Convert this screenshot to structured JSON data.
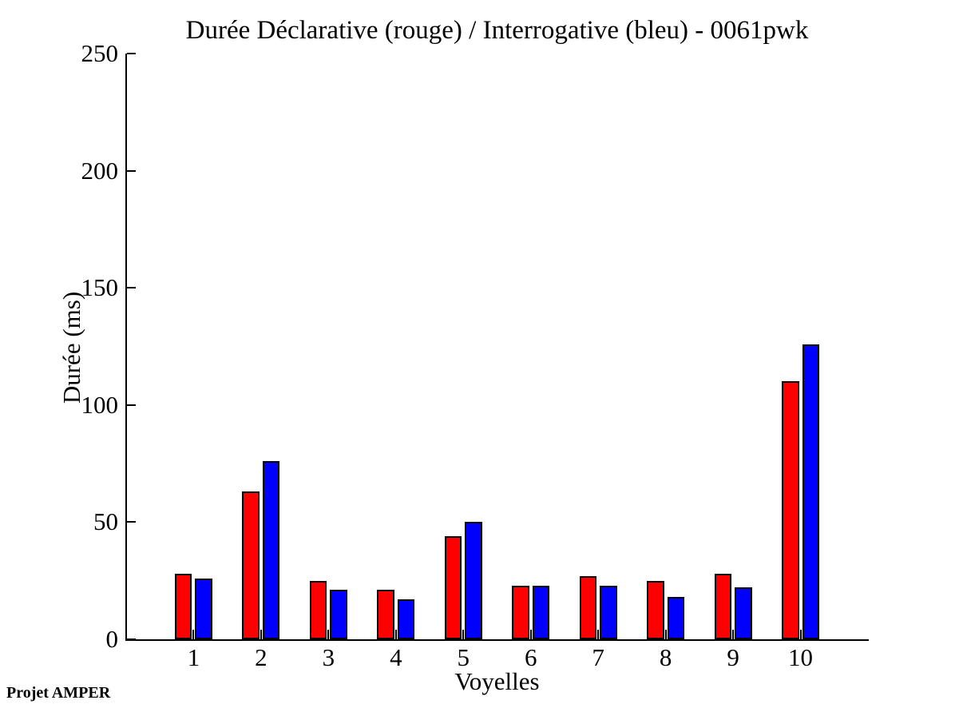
{
  "chart_data": {
    "type": "bar",
    "title": "Durée Déclarative (rouge) / Interrogative (bleu) - 0061pwk",
    "xlabel": "Voyelles",
    "ylabel": "Durée (ms)",
    "categories": [
      "1",
      "2",
      "3",
      "4",
      "5",
      "6",
      "7",
      "8",
      "9",
      "10"
    ],
    "series": [
      {
        "name": "Déclarative",
        "color_word_in_title": "rouge",
        "color": "#ff0000",
        "values": [
          28,
          63,
          25,
          21,
          44,
          23,
          27,
          25,
          28,
          110
        ]
      },
      {
        "name": "Interrogative",
        "color_word_in_title": "bleu",
        "color": "#0000ff",
        "values": [
          26,
          76,
          21,
          17,
          50,
          23,
          23,
          18,
          22,
          126
        ]
      }
    ],
    "ylim": [
      0,
      250
    ],
    "yticks": [
      0,
      50,
      100,
      150,
      200,
      250
    ],
    "grid": false,
    "legend_position": "none",
    "axis_color": "#000000",
    "bar_edge_color": "#000000"
  },
  "footer": {
    "text": "Projet AMPER"
  }
}
